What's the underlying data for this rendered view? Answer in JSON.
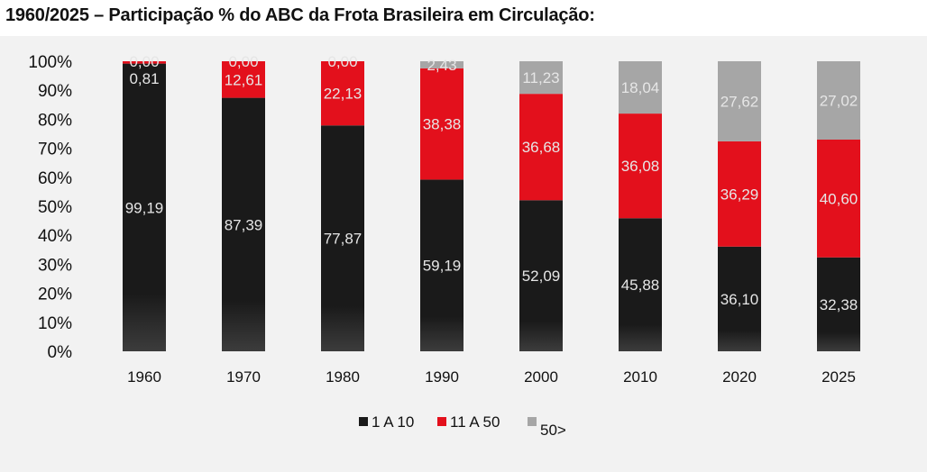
{
  "title": "1960/2025 – Participação % do ABC da Frota Brasileira em Circulação:",
  "chart_data": {
    "type": "bar",
    "stacked": true,
    "title": "1960/2025 – Participação % do ABC da Frota Brasileira em Circulação:",
    "categories": [
      "1960",
      "1970",
      "1980",
      "1990",
      "2000",
      "2010",
      "2020",
      "2025"
    ],
    "series": [
      {
        "name": "1 A 10",
        "color": "#1a1a1a",
        "values": [
          99.19,
          87.39,
          77.87,
          59.19,
          52.09,
          45.88,
          36.1,
          32.38
        ],
        "labels": [
          "99,19",
          "87,39",
          "77,87",
          "59,19",
          "52,09",
          "45,88",
          "36,10",
          "32,38"
        ]
      },
      {
        "name": "11 A 50",
        "color": "#e3101c",
        "values": [
          0.81,
          12.61,
          22.13,
          38.38,
          36.68,
          36.08,
          36.29,
          40.6
        ],
        "labels": [
          "0,81",
          "12,61",
          "22,13",
          "38,38",
          "36,68",
          "36,08",
          "36,29",
          "40,60"
        ]
      },
      {
        "name": "50>",
        "color": "#a6a6a6",
        "values": [
          0.0,
          0.0,
          0.0,
          2.43,
          11.23,
          18.04,
          27.62,
          27.02
        ],
        "labels": [
          "0,00",
          "0,00",
          "0,00",
          "2,43",
          "11,23",
          "18,04",
          "27,62",
          "27,02"
        ]
      }
    ],
    "yticks": [
      "0%",
      "10%",
      "20%",
      "30%",
      "40%",
      "50%",
      "60%",
      "70%",
      "80%",
      "90%",
      "100%"
    ],
    "ylim": [
      0,
      100
    ],
    "grid": false,
    "legend": "bottom"
  }
}
